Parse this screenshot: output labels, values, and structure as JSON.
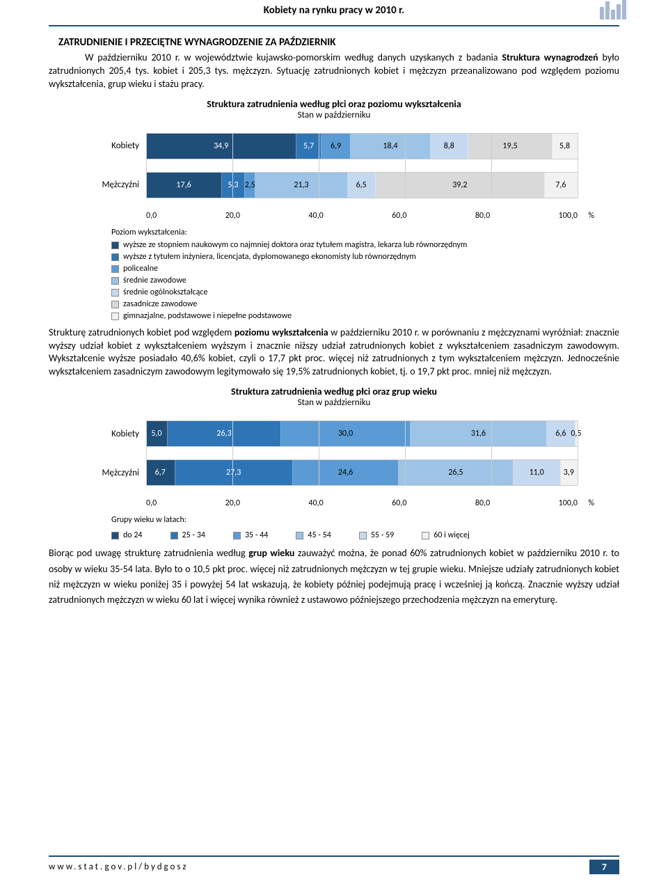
{
  "header": {
    "title": "Kobiety na rynku pracy w 2010 r."
  },
  "section_heading": "ZATRUDNIENIE I PRZECIĘTNE WYNAGRODZENIE ZA PAŹDZIERNIK",
  "para1_a": "W październiku 2010 r. w województwie kujawsko-pomorskim według danych uzyskanych z badania ",
  "para1_b": "Struktura wynagrodzeń",
  "para1_c": " było zatrudnionych 205,4 tys. kobiet i 205,3 tys. mężczyzn. Sytuację zatrudnionych kobiet i mężczyzn przeanalizowano pod względem poziomu wykształcenia, grup wieku i stażu pracy.",
  "chart1": {
    "title": "Struktura zatrudnienia według płci oraz poziomu wykształcenia",
    "subtitle": "Stan w październiku",
    "categories": [
      "Kobiety",
      "Mężczyźni"
    ],
    "series_labels": [
      "wyższe ze stopniem naukowym co najmniej doktora oraz tytułem magistra, lekarza lub równorzędnym",
      "wyższe z tytułem inżyniera, licencjata, dyplomowanego ekonomisty lub równorzędnym",
      "policealne",
      "średnie zawodowe",
      "średnie ogólnokształcące",
      "zasadnicze zawodowe",
      "gimnazjalne, podstawowe i niepełne podstawowe"
    ],
    "colors": [
      "#1f4e79",
      "#2e75b6",
      "#5b9bd5",
      "#9dc3e6",
      "#c5d9f1",
      "#d9d9d9",
      "#f2f2f2"
    ],
    "dark_text_idx": [
      0,
      1
    ],
    "data": [
      [
        34.9,
        5.7,
        6.9,
        18.4,
        8.8,
        19.5,
        5.8
      ],
      [
        17.6,
        5.3,
        2.5,
        21.3,
        6.5,
        39.2,
        7.6
      ]
    ],
    "xticks": [
      "0,0",
      "20,0",
      "40,0",
      "60,0",
      "80,0",
      "100,0"
    ],
    "unit": "%",
    "legend_title": "Poziom wykształcenia:"
  },
  "para2_a": "Strukturę zatrudnionych kobiet pod względem ",
  "para2_b": "poziomu wykształcenia",
  "para2_c": " w październiku 2010 r. w porównaniu z mężczyznami wyróżniał: znacznie wyższy udział kobiet z wykształceniem wyższym i znacznie niższy udział zatrudnionych kobiet z wykształceniem zasadniczym zawodowym. Wykształcenie wyższe posiadało 40,6% kobiet, czyli o 17,7 pkt proc. więcej niż zatrudnionych z tym wykształceniem mężczyzn. Jednocześnie wykształceniem zasadniczym zawodowym legitymowało się 19,5% zatrudnionych kobiet, tj. o 19,7 pkt proc. mniej niż mężczyzn.",
  "chart2": {
    "title": "Struktura zatrudnienia według płci oraz grup wieku",
    "subtitle": "Stan w październiku",
    "categories": [
      "Kobiety",
      "Mężczyźni"
    ],
    "series_labels": [
      "do 24",
      "25 - 34",
      "35 - 44",
      "45 - 54",
      "55 - 59",
      "60 i więcej"
    ],
    "colors": [
      "#1f4e79",
      "#2e75b6",
      "#5b9bd5",
      "#9dc3e6",
      "#c5d9f1",
      "#f2f2f2"
    ],
    "dark_text_idx": [
      0,
      1
    ],
    "data": [
      [
        5.0,
        26.3,
        30.0,
        31.6,
        6.6,
        0.5
      ],
      [
        6.7,
        27.3,
        24.6,
        26.5,
        11.0,
        3.9
      ]
    ],
    "xticks": [
      "0,0",
      "20,0",
      "40,0",
      "60,0",
      "80,0",
      "100,0"
    ],
    "unit": "%",
    "legend_title": "Grupy wieku w latach:"
  },
  "para3_a": "Biorąc pod uwagę strukturę zatrudnienia według ",
  "para3_b": "grup wieku",
  "para3_c": " zauważyć można, że ponad 60% zatrudnionych kobiet w październiku 2010 r. to osoby w wieku 35-54 lata. Było to o 10,5 pkt proc. więcej niż zatrudnionych mężczyzn w tej grupie wieku. Mniejsze udziały zatrudnionych kobiet niż mężczyzn w wieku poniżej 35 i powyżej 54 lat wskazują, że kobiety później podejmują pracę i wcześniej ją kończą. Znacznie wyższy udział zatrudnionych mężczyzn w wieku 60 lat i więcej wynika również z ustawowo późniejszego przechodzenia mężczyzn na emeryturę.",
  "footer": {
    "url": "www.stat.gov.pl/bydgosz",
    "page": "7"
  }
}
